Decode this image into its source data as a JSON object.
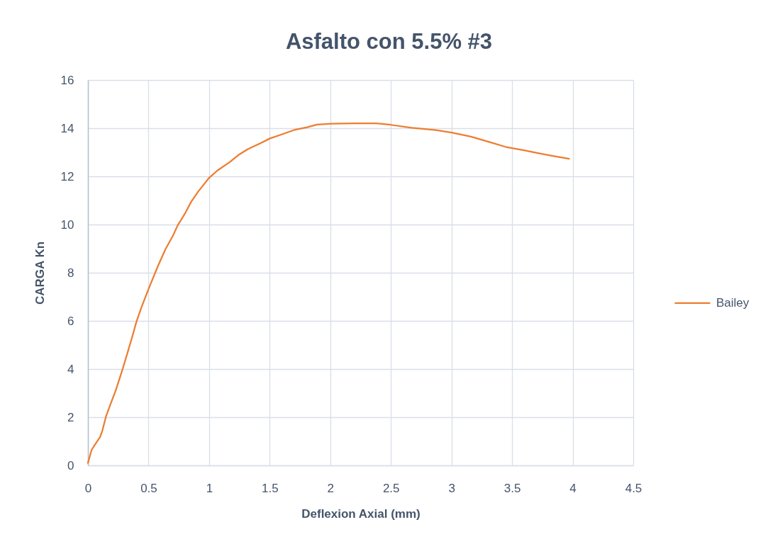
{
  "chart_data": {
    "type": "line",
    "title": "Asfalto con 5.5% #3",
    "xlabel": "Deflexion Axial (mm)",
    "ylabel": "CARGA Kn",
    "x": [
      0,
      0.03,
      0.06,
      0.1,
      0.12,
      0.15,
      0.19,
      0.23,
      0.28,
      0.33,
      0.37,
      0.4,
      0.44,
      0.5,
      0.52,
      0.58,
      0.64,
      0.7,
      0.74,
      0.8,
      0.85,
      0.91,
      1.0,
      1.07,
      1.17,
      1.24,
      1.32,
      1.42,
      1.5,
      1.62,
      1.71,
      1.81,
      1.89,
      2.01,
      2.2,
      2.38,
      2.5,
      2.67,
      2.87,
      3.0,
      3.16,
      3.31,
      3.45,
      3.59,
      3.72,
      3.86,
      3.97
    ],
    "series": [
      {
        "name": "Bailey",
        "color": "#ed7d31",
        "values": [
          0.1,
          0.64,
          0.88,
          1.17,
          1.46,
          2.05,
          2.59,
          3.12,
          3.9,
          4.73,
          5.42,
          5.96,
          6.54,
          7.32,
          7.57,
          8.3,
          8.98,
          9.52,
          9.96,
          10.45,
          10.93,
          11.37,
          11.94,
          12.25,
          12.59,
          12.88,
          13.13,
          13.37,
          13.57,
          13.78,
          13.94,
          14.04,
          14.15,
          14.19,
          14.2,
          14.2,
          14.14,
          14.02,
          13.92,
          13.82,
          13.65,
          13.43,
          13.22,
          13.09,
          12.96,
          12.83,
          12.73
        ]
      }
    ],
    "xlim": [
      0,
      4.5
    ],
    "xticks": [
      0,
      0.5,
      1,
      1.5,
      2,
      2.5,
      3,
      3.5,
      4,
      4.5
    ],
    "ylim": [
      0,
      16
    ],
    "yticks": [
      0,
      2,
      4,
      6,
      8,
      10,
      12,
      14,
      16
    ],
    "grid": true,
    "legend": "right"
  }
}
